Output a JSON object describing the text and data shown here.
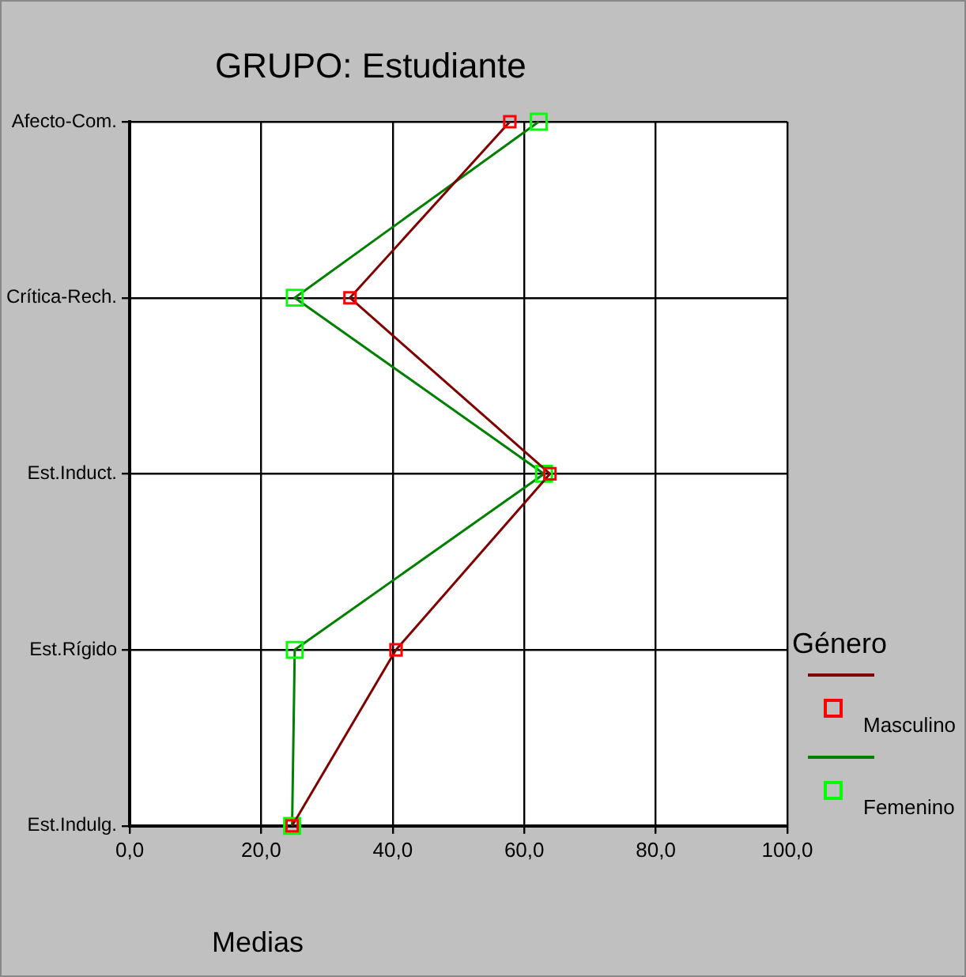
{
  "chart_data": {
    "type": "line",
    "orientation": "horizontal",
    "title": "GRUPO: Estudiante",
    "xlabel": "Medias",
    "legend_title": "Género",
    "legend": "right",
    "categories": [
      "Afecto-Com.",
      "Crítica-Rech.",
      "Est.Induct.",
      "Est.Rígido",
      "Est.Indulg."
    ],
    "xlim": [
      0,
      100
    ],
    "xticks": [
      {
        "value": 0,
        "label": "0,0"
      },
      {
        "value": 20,
        "label": "20,0"
      },
      {
        "value": 40,
        "label": "40,0"
      },
      {
        "value": 60,
        "label": "60,0"
      },
      {
        "value": 80,
        "label": "80,0"
      },
      {
        "value": 100,
        "label": "100,0"
      }
    ],
    "grid": true,
    "marker": "square",
    "line_style": "solid",
    "series": [
      {
        "name": "Masculino",
        "color": "#800000",
        "colors": [
          "#ff0000",
          "#ff0000",
          "#ff0000",
          "#ff0000",
          "#ff0000"
        ],
        "values": [
          57.8,
          33.5,
          63.9,
          40.5,
          24.7
        ]
      },
      {
        "name": "Femenino",
        "color": "#008000",
        "colors": [
          "#00ff00",
          "#00ff00",
          "#00ff00",
          "#00ff00",
          "#00ff00"
        ],
        "values": [
          62.2,
          25.1,
          63.0,
          25.1,
          24.7
        ]
      }
    ]
  }
}
